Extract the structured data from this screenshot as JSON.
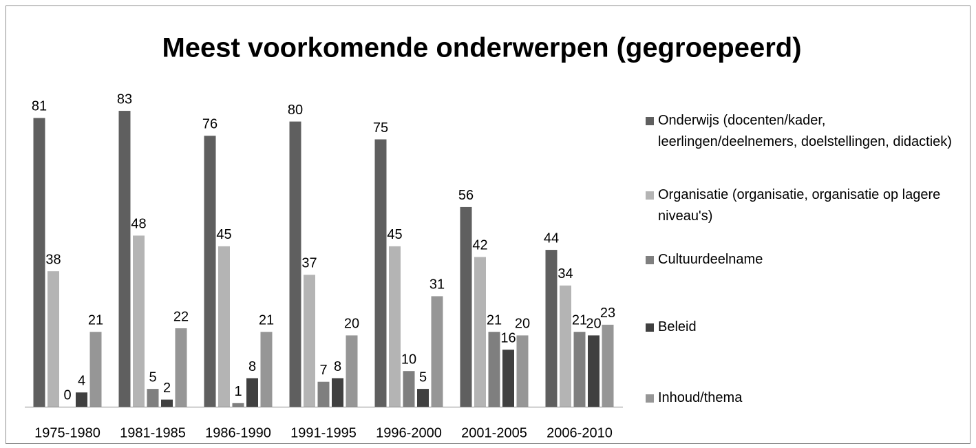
{
  "chart_data": {
    "type": "bar",
    "title": "Meest voorkomende onderwerpen (gegroepeerd)",
    "categories": [
      "1975-1980",
      "1981-1985",
      "1986-1990",
      "1991-1995",
      "1996-2000",
      "2001-2005",
      "2006-2010"
    ],
    "series": [
      {
        "name": "Onderwijs (docenten/kader, leerlingen/deelnemers, doelstellingen, didactiek)",
        "color": "#5f5f5f",
        "values": [
          81,
          83,
          76,
          80,
          75,
          56,
          44
        ]
      },
      {
        "name": "Organisatie (organisatie, organisatie op lagere niveau's)",
        "color": "#b4b4b4",
        "values": [
          38,
          48,
          45,
          37,
          45,
          42,
          34
        ]
      },
      {
        "name": "Cultuurdeelname",
        "color": "#7f7f7f",
        "values": [
          0,
          5,
          1,
          7,
          10,
          21,
          21
        ]
      },
      {
        "name": "Beleid",
        "color": "#404040",
        "values": [
          4,
          2,
          8,
          8,
          5,
          16,
          20
        ]
      },
      {
        "name": "Inhoud/thema",
        "color": "#969696",
        "values": [
          21,
          22,
          21,
          20,
          31,
          20,
          23
        ]
      }
    ],
    "legend": "right"
  }
}
